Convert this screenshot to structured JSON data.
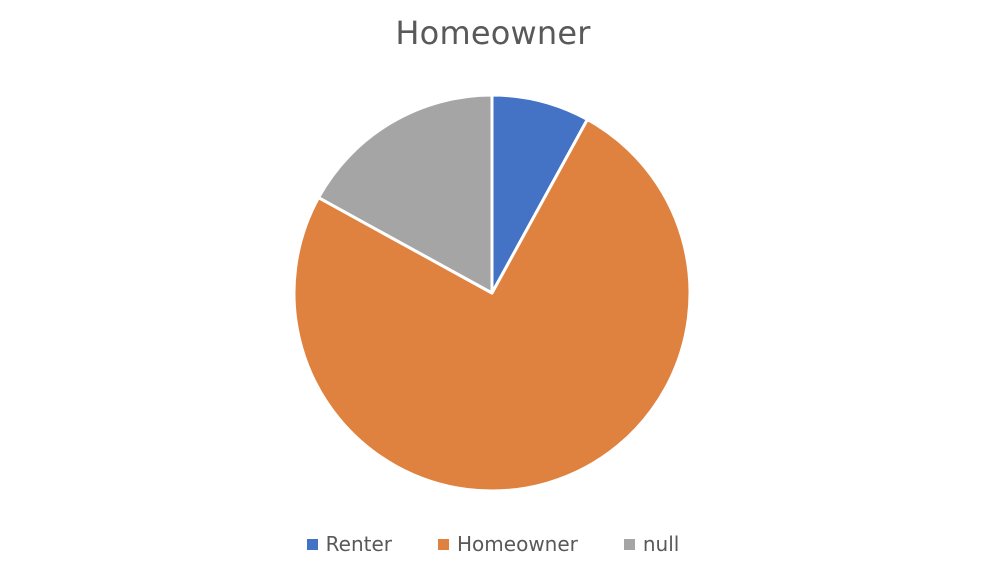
{
  "chart_data": {
    "type": "pie",
    "title": "Homeowner",
    "categories": [
      "Renter",
      "Homeowner",
      "null"
    ],
    "values": [
      8,
      75,
      17
    ],
    "colors": [
      "#4472C4",
      "#E0823F",
      "#A5A5A5"
    ],
    "legend_placement": "bottom"
  }
}
